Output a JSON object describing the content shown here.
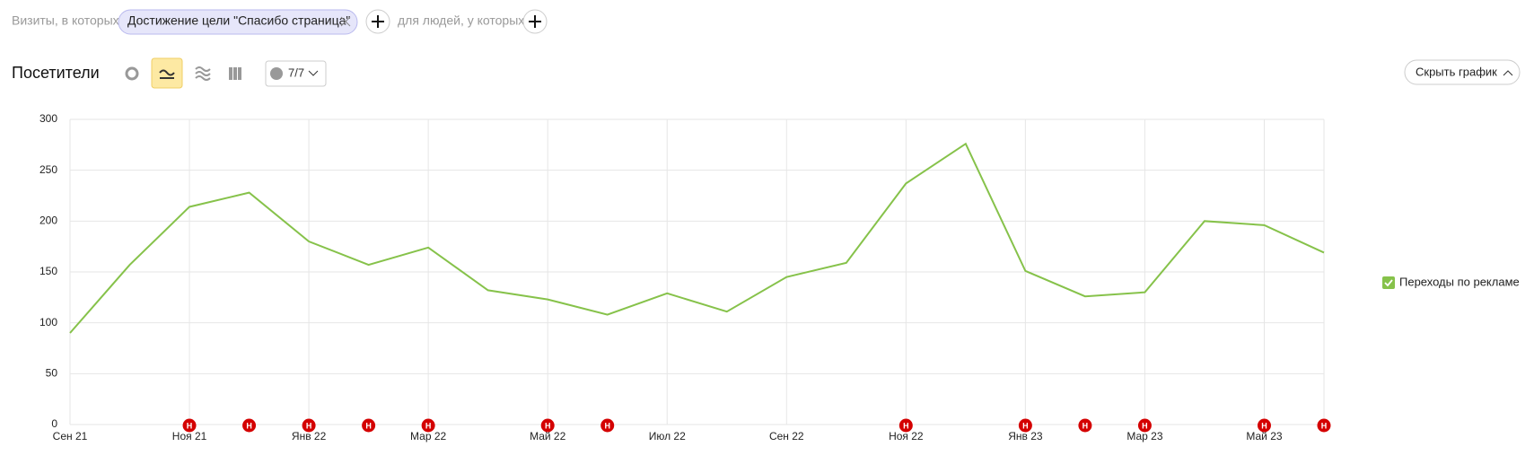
{
  "ui": {
    "filter_prefix": "Визиты, в которых",
    "filter_chip": "Достижение цели \"Спасибо страница\"",
    "filter_people": "для людей, у которых",
    "report_title": "Посетители",
    "notes_counter": "7/7",
    "hide_chart": "Скрыть график"
  },
  "chart_data": {
    "type": "line",
    "categories": [
      "Сен 21",
      null,
      "Ноя 21",
      null,
      "Янв 22",
      null,
      "Мар 22",
      null,
      "Май 22",
      null,
      "Июл 22",
      null,
      "Сен 22",
      null,
      "Ноя 22",
      null,
      "Янв 23",
      null,
      "Мар 23",
      null,
      "Май 23",
      null
    ],
    "series": [
      {
        "name": "Переходы по рекламе",
        "color": "#86c24a",
        "values": [
          90,
          157,
          214,
          228,
          180,
          157,
          174,
          132,
          123,
          108,
          129,
          111,
          145,
          159,
          237,
          276,
          151,
          126,
          130,
          200,
          196,
          169
        ]
      }
    ],
    "ylim": [
      0,
      300
    ],
    "yticks": [
      0,
      50,
      100,
      150,
      200,
      250,
      300
    ],
    "grid": true,
    "note_label": "Н",
    "notes": [
      false,
      false,
      true,
      true,
      true,
      true,
      true,
      false,
      true,
      true,
      false,
      false,
      false,
      false,
      true,
      false,
      true,
      true,
      true,
      false,
      true,
      true
    ]
  }
}
